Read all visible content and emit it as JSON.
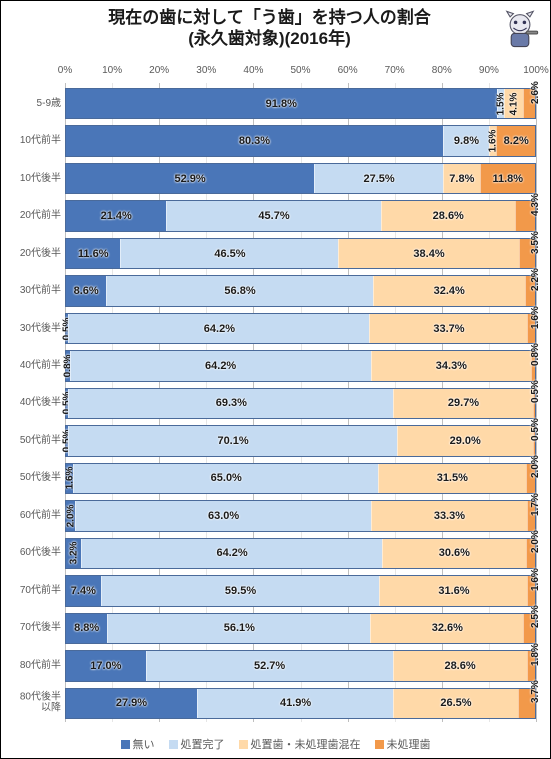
{
  "title_line1": "現在の歯に対して「う歯」を持つ人の割合",
  "title_line2": "(永久歯対象)(2016年)",
  "title_fontsize": 17,
  "chart": {
    "type": "stacked-bar-100",
    "xmin": 0,
    "xmax": 100,
    "xtick_step": 10,
    "xtick_suffix": "%",
    "border_color": "#4a6a9a",
    "grid_major_color": "#bfbfbf",
    "grid_minor_color": "#e6e6e6",
    "axis_fontsize": 10,
    "label_fontsize": 11,
    "series": [
      {
        "name": "無い",
        "color": "#4a76b8"
      },
      {
        "name": "処置完了",
        "color": "#c5dbf2"
      },
      {
        "name": "処置歯・未処理歯混在",
        "color": "#ffd9a8"
      },
      {
        "name": "未処理歯",
        "color": "#f2994a"
      }
    ],
    "categories": [
      {
        "label": "5-9歳",
        "values": [
          91.8,
          1.5,
          4.1,
          2.6
        ]
      },
      {
        "label": "10代前半",
        "values": [
          80.3,
          9.8,
          1.6,
          8.2
        ]
      },
      {
        "label": "10代後半",
        "values": [
          52.9,
          27.5,
          7.8,
          11.8
        ]
      },
      {
        "label": "20代前半",
        "values": [
          21.4,
          45.7,
          28.6,
          4.3
        ]
      },
      {
        "label": "20代後半",
        "values": [
          11.6,
          46.5,
          38.4,
          3.5
        ]
      },
      {
        "label": "30代前半",
        "values": [
          8.6,
          56.8,
          32.4,
          2.2
        ]
      },
      {
        "label": "30代後半",
        "values": [
          0.5,
          64.2,
          33.7,
          1.6
        ]
      },
      {
        "label": "40代前半",
        "values": [
          0.8,
          64.2,
          34.3,
          0.8
        ]
      },
      {
        "label": "40代後半",
        "values": [
          0.5,
          69.3,
          29.7,
          0.5
        ]
      },
      {
        "label": "50代前半",
        "values": [
          0.5,
          70.1,
          29.0,
          0.5
        ]
      },
      {
        "label": "50代後半",
        "values": [
          1.6,
          65.0,
          31.5,
          2.0
        ]
      },
      {
        "label": "60代前半",
        "values": [
          2.0,
          63.0,
          33.3,
          1.7
        ]
      },
      {
        "label": "60代後半",
        "values": [
          3.2,
          64.2,
          30.6,
          2.0
        ]
      },
      {
        "label": "70代前半",
        "values": [
          7.4,
          59.5,
          31.6,
          1.6
        ]
      },
      {
        "label": "70代後半",
        "values": [
          8.8,
          56.1,
          32.6,
          2.5
        ]
      },
      {
        "label": "80代前半",
        "values": [
          17.0,
          52.7,
          28.6,
          1.8
        ]
      },
      {
        "label": "80代後半\n以降",
        "values": [
          27.9,
          41.9,
          26.5,
          3.7
        ]
      }
    ]
  },
  "legend_labels": [
    "無い",
    "処置完了",
    "処置歯・未処理歯混在",
    "未処理歯"
  ]
}
